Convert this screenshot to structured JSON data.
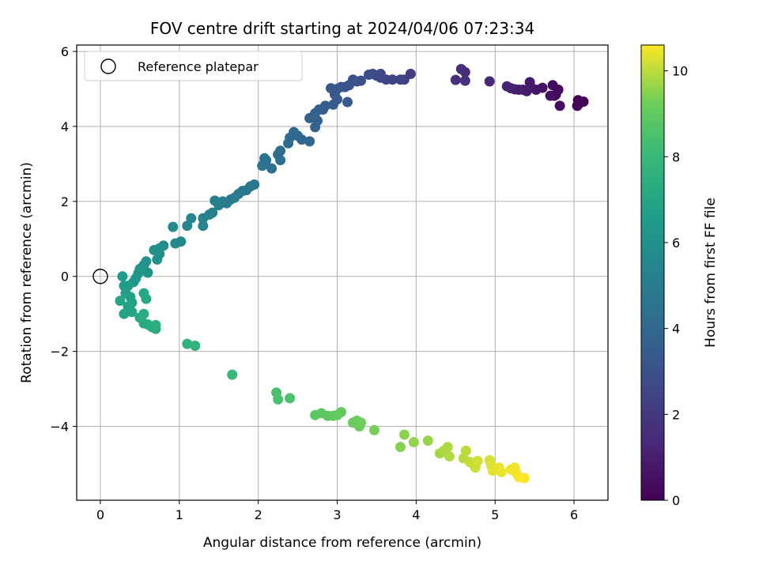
{
  "chart_data": {
    "type": "scatter",
    "title": "FOV centre drift starting at 2024/04/06 07:23:34",
    "xlabel": "Angular distance from reference (arcmin)",
    "ylabel": "Rotation from reference (arcmin)",
    "xlim": [
      -0.3,
      6.43
    ],
    "ylim": [
      -5.97,
      6.17
    ],
    "x_ticks": [
      0,
      1,
      2,
      3,
      4,
      5,
      6
    ],
    "y_ticks": [
      -4,
      -2,
      0,
      2,
      4,
      6
    ],
    "x_tick_labels": [
      "0",
      "1",
      "2",
      "3",
      "4",
      "5",
      "6"
    ],
    "y_tick_labels": [
      "−4",
      "−2",
      "0",
      "2",
      "4",
      "6"
    ],
    "grid": true,
    "legend": {
      "placement": "top-left",
      "entries": [
        "Reference platepar"
      ]
    },
    "reference_point": {
      "x": 0,
      "y": 0
    },
    "colorbar": {
      "label": "Hours from first FF file",
      "colormap": "viridis",
      "range": [
        0,
        10.6
      ],
      "ticks": [
        0,
        2,
        4,
        6,
        8,
        10
      ],
      "tick_labels": [
        "0",
        "2",
        "4",
        "6",
        "8",
        "10"
      ]
    },
    "points": [
      {
        "x": 6.12,
        "y": 4.66,
        "t": 0.0
      },
      {
        "x": 6.05,
        "y": 4.7,
        "t": 0.05
      },
      {
        "x": 6.04,
        "y": 4.55,
        "t": 0.1
      },
      {
        "x": 6.07,
        "y": 4.62,
        "t": 0.15
      },
      {
        "x": 5.8,
        "y": 4.98,
        "t": 0.25
      },
      {
        "x": 5.77,
        "y": 4.85,
        "t": 0.3
      },
      {
        "x": 5.75,
        "y": 4.82,
        "t": 0.35
      },
      {
        "x": 5.73,
        "y": 5.1,
        "t": 0.4
      },
      {
        "x": 5.82,
        "y": 4.55,
        "t": 0.45
      },
      {
        "x": 5.7,
        "y": 4.82,
        "t": 0.5
      },
      {
        "x": 5.6,
        "y": 5.03,
        "t": 0.6
      },
      {
        "x": 5.52,
        "y": 4.98,
        "t": 0.7
      },
      {
        "x": 5.45,
        "y": 5.06,
        "t": 0.75
      },
      {
        "x": 5.44,
        "y": 5.18,
        "t": 0.8
      },
      {
        "x": 5.4,
        "y": 4.94,
        "t": 0.85
      },
      {
        "x": 5.35,
        "y": 4.98,
        "t": 0.9
      },
      {
        "x": 5.3,
        "y": 4.98,
        "t": 0.95
      },
      {
        "x": 5.25,
        "y": 4.99,
        "t": 1.0
      },
      {
        "x": 5.2,
        "y": 5.02,
        "t": 1.05
      },
      {
        "x": 5.15,
        "y": 5.07,
        "t": 1.1
      },
      {
        "x": 4.93,
        "y": 5.2,
        "t": 1.3
      },
      {
        "x": 4.62,
        "y": 5.45,
        "t": 1.5
      },
      {
        "x": 4.57,
        "y": 5.53,
        "t": 1.55
      },
      {
        "x": 4.62,
        "y": 5.22,
        "t": 1.6
      },
      {
        "x": 4.5,
        "y": 5.24,
        "t": 1.7
      },
      {
        "x": 3.93,
        "y": 5.4,
        "t": 2.2
      },
      {
        "x": 3.85,
        "y": 5.25,
        "t": 2.3
      },
      {
        "x": 3.8,
        "y": 5.25,
        "t": 2.35
      },
      {
        "x": 3.7,
        "y": 5.25,
        "t": 2.4
      },
      {
        "x": 3.62,
        "y": 5.25,
        "t": 2.5
      },
      {
        "x": 3.55,
        "y": 5.3,
        "t": 2.6
      },
      {
        "x": 3.55,
        "y": 5.4,
        "t": 2.65
      },
      {
        "x": 3.5,
        "y": 5.35,
        "t": 2.7
      },
      {
        "x": 3.45,
        "y": 5.4,
        "t": 2.75
      },
      {
        "x": 3.4,
        "y": 5.38,
        "t": 2.8
      },
      {
        "x": 3.3,
        "y": 5.22,
        "t": 2.9
      },
      {
        "x": 3.25,
        "y": 5.2,
        "t": 2.95
      },
      {
        "x": 3.2,
        "y": 5.25,
        "t": 3.0
      },
      {
        "x": 3.15,
        "y": 5.1,
        "t": 3.05
      },
      {
        "x": 3.1,
        "y": 5.05,
        "t": 3.1
      },
      {
        "x": 3.05,
        "y": 5.05,
        "t": 3.15
      },
      {
        "x": 3.0,
        "y": 5.0,
        "t": 3.2
      },
      {
        "x": 2.92,
        "y": 5.02,
        "t": 3.25
      },
      {
        "x": 2.97,
        "y": 4.85,
        "t": 3.3
      },
      {
        "x": 3.0,
        "y": 4.72,
        "t": 3.35
      },
      {
        "x": 3.13,
        "y": 4.65,
        "t": 3.4
      },
      {
        "x": 2.95,
        "y": 4.58,
        "t": 3.45
      },
      {
        "x": 2.85,
        "y": 4.55,
        "t": 3.5
      },
      {
        "x": 2.82,
        "y": 4.45,
        "t": 3.55
      },
      {
        "x": 2.77,
        "y": 4.45,
        "t": 3.6
      },
      {
        "x": 2.72,
        "y": 4.35,
        "t": 3.65
      },
      {
        "x": 2.65,
        "y": 4.22,
        "t": 3.7
      },
      {
        "x": 2.75,
        "y": 4.15,
        "t": 3.75
      },
      {
        "x": 2.72,
        "y": 3.98,
        "t": 3.8
      },
      {
        "x": 2.65,
        "y": 3.6,
        "t": 3.9
      },
      {
        "x": 2.55,
        "y": 3.65,
        "t": 3.95
      },
      {
        "x": 2.5,
        "y": 3.75,
        "t": 4.0
      },
      {
        "x": 2.45,
        "y": 3.85,
        "t": 4.05
      },
      {
        "x": 2.4,
        "y": 3.7,
        "t": 4.1
      },
      {
        "x": 2.38,
        "y": 3.55,
        "t": 4.15
      },
      {
        "x": 2.28,
        "y": 3.35,
        "t": 4.2
      },
      {
        "x": 2.25,
        "y": 3.25,
        "t": 4.25
      },
      {
        "x": 2.28,
        "y": 3.1,
        "t": 4.3
      },
      {
        "x": 2.17,
        "y": 2.88,
        "t": 4.35
      },
      {
        "x": 2.1,
        "y": 3.1,
        "t": 4.4
      },
      {
        "x": 2.07,
        "y": 3.0,
        "t": 4.45
      },
      {
        "x": 2.05,
        "y": 2.95,
        "t": 4.5
      },
      {
        "x": 2.08,
        "y": 3.15,
        "t": 4.55
      },
      {
        "x": 1.95,
        "y": 2.45,
        "t": 4.7
      },
      {
        "x": 1.9,
        "y": 2.4,
        "t": 4.75
      },
      {
        "x": 1.85,
        "y": 2.3,
        "t": 4.8
      },
      {
        "x": 1.8,
        "y": 2.28,
        "t": 4.85
      },
      {
        "x": 1.75,
        "y": 2.2,
        "t": 4.9
      },
      {
        "x": 1.7,
        "y": 2.1,
        "t": 4.95
      },
      {
        "x": 1.65,
        "y": 2.05,
        "t": 5.0
      },
      {
        "x": 1.6,
        "y": 1.95,
        "t": 5.05
      },
      {
        "x": 1.55,
        "y": 2.0,
        "t": 5.1
      },
      {
        "x": 1.5,
        "y": 1.9,
        "t": 5.15
      },
      {
        "x": 1.45,
        "y": 2.02,
        "t": 5.2
      },
      {
        "x": 1.42,
        "y": 1.7,
        "t": 5.25
      },
      {
        "x": 1.38,
        "y": 1.65,
        "t": 5.3
      },
      {
        "x": 1.3,
        "y": 1.55,
        "t": 5.35
      },
      {
        "x": 1.3,
        "y": 1.35,
        "t": 5.4
      },
      {
        "x": 1.15,
        "y": 1.55,
        "t": 5.45
      },
      {
        "x": 1.1,
        "y": 1.35,
        "t": 5.5
      },
      {
        "x": 1.02,
        "y": 0.93,
        "t": 5.6
      },
      {
        "x": 0.92,
        "y": 1.32,
        "t": 5.65
      },
      {
        "x": 0.95,
        "y": 0.88,
        "t": 5.7
      },
      {
        "x": 0.8,
        "y": 0.82,
        "t": 5.8
      },
      {
        "x": 0.75,
        "y": 0.75,
        "t": 5.85
      },
      {
        "x": 0.75,
        "y": 0.6,
        "t": 5.9
      },
      {
        "x": 0.72,
        "y": 0.45,
        "t": 5.95
      },
      {
        "x": 0.68,
        "y": 0.7,
        "t": 6.0
      },
      {
        "x": 0.6,
        "y": 0.1,
        "t": 6.1
      },
      {
        "x": 0.58,
        "y": 0.4,
        "t": 6.15
      },
      {
        "x": 0.55,
        "y": 0.3,
        "t": 6.2
      },
      {
        "x": 0.5,
        "y": 0.2,
        "t": 6.25
      },
      {
        "x": 0.48,
        "y": 0.08,
        "t": 6.3
      },
      {
        "x": 0.45,
        "y": -0.05,
        "t": 6.35
      },
      {
        "x": 0.42,
        "y": -0.15,
        "t": 6.4
      },
      {
        "x": 0.35,
        "y": -0.25,
        "t": 6.5
      },
      {
        "x": 0.3,
        "y": -0.25,
        "t": 6.55
      },
      {
        "x": 0.28,
        "y": 0.0,
        "t": 6.6
      },
      {
        "x": 0.32,
        "y": -0.45,
        "t": 6.7
      },
      {
        "x": 0.38,
        "y": -0.55,
        "t": 6.75
      },
      {
        "x": 0.4,
        "y": -0.7,
        "t": 6.8
      },
      {
        "x": 0.35,
        "y": -0.8,
        "t": 6.85
      },
      {
        "x": 0.4,
        "y": -0.95,
        "t": 6.9
      },
      {
        "x": 0.3,
        "y": -1.0,
        "t": 6.95
      },
      {
        "x": 0.25,
        "y": -0.65,
        "t": 7.0
      },
      {
        "x": 0.55,
        "y": -0.45,
        "t": 7.05
      },
      {
        "x": 0.58,
        "y": -0.6,
        "t": 7.1
      },
      {
        "x": 0.5,
        "y": -1.1,
        "t": 7.15
      },
      {
        "x": 0.55,
        "y": -1.25,
        "t": 7.2
      },
      {
        "x": 0.6,
        "y": -1.28,
        "t": 7.25
      },
      {
        "x": 0.65,
        "y": -1.35,
        "t": 7.3
      },
      {
        "x": 0.7,
        "y": -1.4,
        "t": 7.35
      },
      {
        "x": 0.55,
        "y": -1.0,
        "t": 7.4
      },
      {
        "x": 0.7,
        "y": -1.3,
        "t": 7.45
      },
      {
        "x": 1.1,
        "y": -1.8,
        "t": 7.7
      },
      {
        "x": 1.2,
        "y": -1.85,
        "t": 7.75
      },
      {
        "x": 1.67,
        "y": -2.62,
        "t": 8.0
      },
      {
        "x": 2.23,
        "y": -3.1,
        "t": 8.4
      },
      {
        "x": 2.25,
        "y": -3.28,
        "t": 8.45
      },
      {
        "x": 2.4,
        "y": -3.25,
        "t": 8.5
      },
      {
        "x": 2.72,
        "y": -3.7,
        "t": 8.8
      },
      {
        "x": 2.8,
        "y": -3.65,
        "t": 8.85
      },
      {
        "x": 2.88,
        "y": -3.72,
        "t": 8.9
      },
      {
        "x": 2.95,
        "y": -3.72,
        "t": 8.95
      },
      {
        "x": 3.0,
        "y": -3.7,
        "t": 9.0
      },
      {
        "x": 3.05,
        "y": -3.62,
        "t": 9.05
      },
      {
        "x": 3.2,
        "y": -3.9,
        "t": 9.1
      },
      {
        "x": 3.25,
        "y": -3.85,
        "t": 9.15
      },
      {
        "x": 3.28,
        "y": -4.0,
        "t": 9.2
      },
      {
        "x": 3.3,
        "y": -3.9,
        "t": 9.25
      },
      {
        "x": 3.47,
        "y": -4.1,
        "t": 9.35
      },
      {
        "x": 3.8,
        "y": -4.55,
        "t": 9.5
      },
      {
        "x": 3.85,
        "y": -4.22,
        "t": 9.55
      },
      {
        "x": 3.97,
        "y": -4.42,
        "t": 9.6
      },
      {
        "x": 4.15,
        "y": -4.38,
        "t": 9.65
      },
      {
        "x": 4.3,
        "y": -4.72,
        "t": 9.75
      },
      {
        "x": 4.35,
        "y": -4.65,
        "t": 9.8
      },
      {
        "x": 4.4,
        "y": -4.55,
        "t": 9.85
      },
      {
        "x": 4.42,
        "y": -4.8,
        "t": 9.9
      },
      {
        "x": 4.6,
        "y": -4.85,
        "t": 9.95
      },
      {
        "x": 4.63,
        "y": -4.65,
        "t": 10.0
      },
      {
        "x": 4.68,
        "y": -4.95,
        "t": 10.05
      },
      {
        "x": 4.72,
        "y": -5.0,
        "t": 10.1
      },
      {
        "x": 4.75,
        "y": -5.1,
        "t": 10.15
      },
      {
        "x": 4.78,
        "y": -4.92,
        "t": 10.2
      },
      {
        "x": 4.93,
        "y": -4.9,
        "t": 10.25
      },
      {
        "x": 4.95,
        "y": -5.05,
        "t": 10.3
      },
      {
        "x": 4.97,
        "y": -5.18,
        "t": 10.35
      },
      {
        "x": 5.05,
        "y": -5.1,
        "t": 10.4
      },
      {
        "x": 5.08,
        "y": -5.22,
        "t": 10.42
      },
      {
        "x": 5.2,
        "y": -5.15,
        "t": 10.45
      },
      {
        "x": 5.25,
        "y": -5.1,
        "t": 10.48
      },
      {
        "x": 5.27,
        "y": -5.25,
        "t": 10.5
      },
      {
        "x": 5.3,
        "y": -5.35,
        "t": 10.55
      },
      {
        "x": 5.37,
        "y": -5.38,
        "t": 10.6
      }
    ]
  }
}
